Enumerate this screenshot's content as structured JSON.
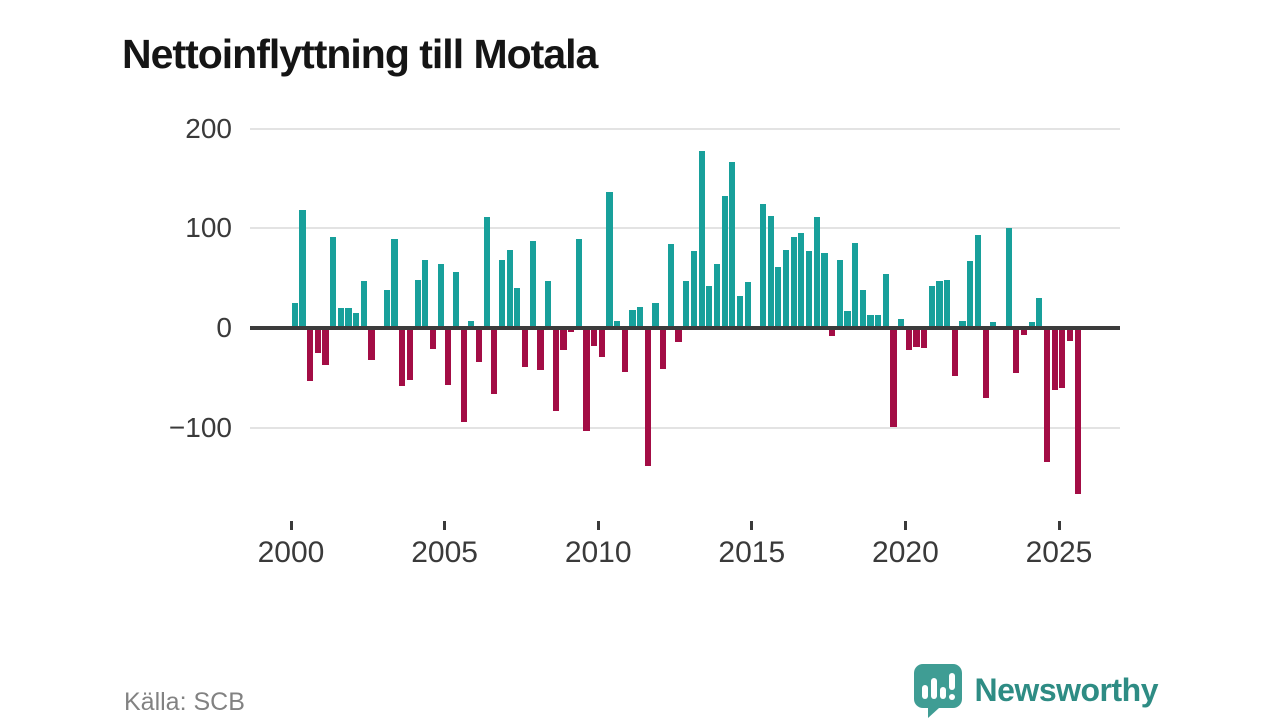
{
  "title": "Nettoinflyttning till Motala",
  "source": "Källa: SCB",
  "logo": {
    "text": "Newsworthy",
    "icon": "newsworthy-speech-bubble-bars-icon"
  },
  "colors": {
    "positive_bar": "#18a09b",
    "negative_bar": "#a30d45",
    "zero_line": "#3b3b3b",
    "gridline": "#e3e3e3",
    "axis_text": "#3a3a3a",
    "title_text": "#151515",
    "source_text": "#828282",
    "logo_teal": "#3f9d94",
    "logo_text": "#2e8c84"
  },
  "chart_data": {
    "type": "bar",
    "title": "Nettoinflyttning till Motala",
    "frequency": "quarterly",
    "start_year": 2000,
    "start_quarter": 1,
    "x_tick_labels": [
      "2000",
      "2005",
      "2010",
      "2015",
      "2020",
      "2025"
    ],
    "y_ticks": [
      200,
      100,
      0,
      -100
    ],
    "y_tick_labels": [
      "200",
      "100",
      "0",
      "−100"
    ],
    "ylim": [
      -175,
      210
    ],
    "grid": "horizontal-only",
    "legend": "none",
    "values": [
      25,
      118,
      -53,
      -25,
      -37,
      91,
      20,
      20,
      15,
      47,
      -32,
      0,
      38,
      89,
      -58,
      -52,
      48,
      68,
      -21,
      64,
      -57,
      56,
      -94,
      7,
      -34,
      111,
      -66,
      68,
      78,
      40,
      -39,
      87,
      -42,
      47,
      -83,
      -22,
      -4,
      89,
      -103,
      -18,
      -29,
      136,
      7,
      -44,
      18,
      21,
      -138,
      25,
      -41,
      84,
      -14,
      47,
      77,
      178,
      42,
      64,
      132,
      166,
      32,
      46,
      0,
      124,
      112,
      61,
      78,
      91,
      95,
      77,
      111,
      75,
      -8,
      68,
      17,
      85,
      38,
      13,
      13,
      54,
      -99,
      9,
      -22,
      -19,
      -20,
      42,
      47,
      48,
      -48,
      7,
      67,
      93,
      -70,
      6,
      0,
      100,
      -45,
      -7,
      6,
      30,
      -134,
      -62,
      -60,
      -13,
      -166
    ]
  }
}
